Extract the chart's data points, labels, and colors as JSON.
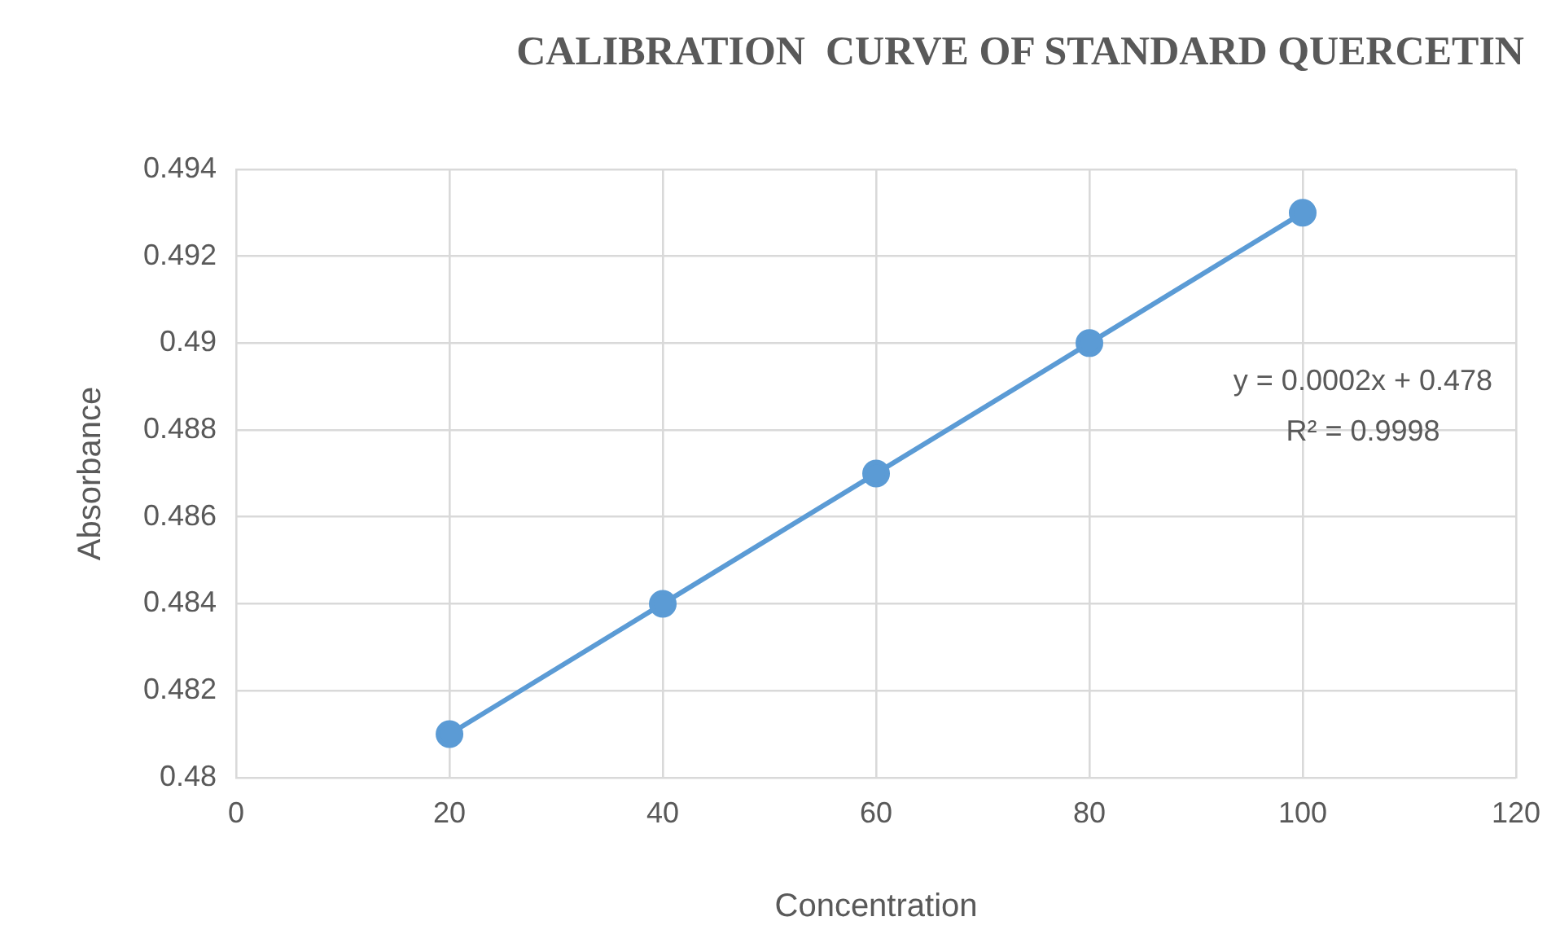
{
  "chart_data": {
    "type": "line",
    "title": "CALIBRATION  CURVE OF STANDARD QUERCETIN",
    "xlabel": "Concentration",
    "ylabel": "Absorbance",
    "x": [
      20,
      40,
      60,
      80,
      100
    ],
    "series": [
      {
        "color": "#5b9bd5",
        "values": [
          0.481,
          0.484,
          0.487,
          0.49,
          0.493
        ]
      }
    ],
    "xlim": [
      0,
      120
    ],
    "xticks": [
      0,
      20,
      40,
      60,
      80,
      100,
      120
    ],
    "ylim": [
      0.48,
      0.494
    ],
    "yticks": [
      0.48,
      0.482,
      0.484,
      0.486,
      0.488,
      0.49,
      0.492,
      0.494
    ],
    "grid": true,
    "marker": "circle",
    "line_style": "solid",
    "annotations": [
      "y = 0.0002x + 0.478",
      "R² = 0.9998"
    ]
  }
}
